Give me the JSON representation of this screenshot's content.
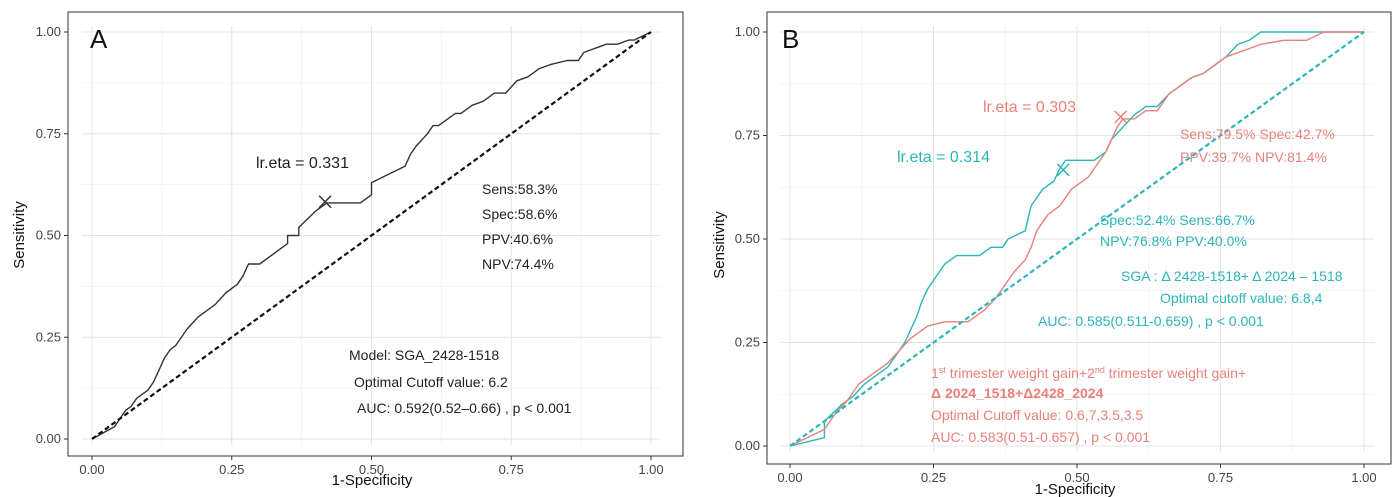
{
  "chart_data": [
    {
      "type": "line",
      "panel": "A",
      "xlabel": "1-Specificity",
      "ylabel": "Sensitivity",
      "xlim": [
        0,
        1
      ],
      "ylim": [
        0,
        1
      ],
      "x_ticks": [
        "0.00",
        "0.25",
        "0.50",
        "0.75",
        "1.00"
      ],
      "y_ticks": [
        "0.00",
        "0.25",
        "0.50",
        "0.75",
        "1.00"
      ],
      "grid": true,
      "series": [
        {
          "color": "#333333",
          "x": [
            0,
            0.04,
            0.05,
            0.06,
            0.07,
            0.08,
            0.09,
            0.1,
            0.11,
            0.12,
            0.13,
            0.14,
            0.15,
            0.17,
            0.19,
            0.2,
            0.22,
            0.24,
            0.26,
            0.27,
            0.28,
            0.3,
            0.32,
            0.35,
            0.35,
            0.37,
            0.37,
            0.4,
            0.42,
            0.44,
            0.48,
            0.5,
            0.5,
            0.53,
            0.56,
            0.57,
            0.58,
            0.6,
            0.61,
            0.62,
            0.65,
            0.66,
            0.68,
            0.7,
            0.72,
            0.74,
            0.76,
            0.78,
            0.79,
            0.8,
            0.82,
            0.85,
            0.87,
            0.88,
            0.9,
            0.92,
            0.94,
            0.96,
            0.97,
            1.0
          ],
          "y": [
            0,
            0.03,
            0.05,
            0.07,
            0.08,
            0.1,
            0.11,
            0.12,
            0.14,
            0.17,
            0.2,
            0.22,
            0.23,
            0.27,
            0.3,
            0.31,
            0.33,
            0.36,
            0.38,
            0.4,
            0.43,
            0.43,
            0.45,
            0.48,
            0.5,
            0.5,
            0.52,
            0.56,
            0.58,
            0.58,
            0.58,
            0.6,
            0.63,
            0.65,
            0.67,
            0.7,
            0.72,
            0.75,
            0.77,
            0.77,
            0.8,
            0.8,
            0.82,
            0.83,
            0.85,
            0.85,
            0.88,
            0.89,
            0.9,
            0.91,
            0.92,
            0.93,
            0.93,
            0.95,
            0.96,
            0.97,
            0.97,
            0.98,
            0.98,
            1.0
          ]
        },
        {
          "color": "#111111",
          "dashed": true,
          "x": [
            0,
            1
          ],
          "y": [
            0,
            1
          ]
        }
      ],
      "cutoff_marker": {
        "x": 0.417,
        "y": 0.583,
        "color": "#333333"
      },
      "annotations": {
        "panel_letter": "A",
        "cutoff_label": "lr.eta = 0.331",
        "sens": "Sens:58.3%",
        "spec": "Spec:58.6%",
        "ppv": "PPV:40.6%",
        "npv": "NPV:74.4%",
        "model": "Model: SGA_2428-1518",
        "optimal": "Optimal Cutoff value:  6.2",
        "auc": "AUC:  0.592(0.52–0.66)  , p < 0.001"
      }
    },
    {
      "type": "line",
      "panel": "B",
      "xlabel": "1-Specificity",
      "ylabel": "Sensitivity",
      "xlim": [
        0,
        1
      ],
      "ylim": [
        0,
        1
      ],
      "x_ticks": [
        "0.00",
        "0.25",
        "0.50",
        "0.75",
        "1.00"
      ],
      "y_ticks": [
        "0.00",
        "0.25",
        "0.50",
        "0.75",
        "1.00"
      ],
      "grid": true,
      "series": [
        {
          "color": "#2bb5b8",
          "x": [
            0,
            0.06,
            0.06,
            0.09,
            0.11,
            0.13,
            0.15,
            0.17,
            0.18,
            0.19,
            0.2,
            0.21,
            0.22,
            0.23,
            0.24,
            0.25,
            0.26,
            0.27,
            0.29,
            0.33,
            0.35,
            0.37,
            0.38,
            0.41,
            0.42,
            0.44,
            0.46,
            0.47,
            0.48,
            0.5,
            0.53,
            0.55,
            0.56,
            0.58,
            0.6,
            0.62,
            0.64,
            0.66,
            0.68,
            0.7,
            0.72,
            0.74,
            0.76,
            0.78,
            0.8,
            0.82,
            0.84,
            0.88,
            0.92,
            0.95,
            1.0
          ],
          "y": [
            0,
            0.02,
            0.06,
            0.1,
            0.12,
            0.15,
            0.17,
            0.19,
            0.21,
            0.23,
            0.25,
            0.28,
            0.31,
            0.35,
            0.38,
            0.4,
            0.42,
            0.44,
            0.46,
            0.46,
            0.48,
            0.48,
            0.5,
            0.52,
            0.58,
            0.62,
            0.64,
            0.67,
            0.69,
            0.69,
            0.69,
            0.71,
            0.74,
            0.77,
            0.8,
            0.82,
            0.82,
            0.85,
            0.87,
            0.89,
            0.9,
            0.92,
            0.94,
            0.97,
            0.98,
            1.0,
            1.0,
            1.0,
            1.0,
            1.0,
            1.0
          ]
        },
        {
          "color": "#e8807a",
          "x": [
            0,
            0.06,
            0.08,
            0.1,
            0.12,
            0.14,
            0.17,
            0.19,
            0.21,
            0.24,
            0.27,
            0.31,
            0.34,
            0.36,
            0.37,
            0.38,
            0.39,
            0.41,
            0.42,
            0.43,
            0.45,
            0.47,
            0.49,
            0.52,
            0.55,
            0.57,
            0.58,
            0.6,
            0.62,
            0.64,
            0.66,
            0.68,
            0.7,
            0.72,
            0.74,
            0.76,
            0.78,
            0.8,
            0.82,
            0.86,
            0.9,
            0.93,
            1.0
          ],
          "y": [
            0,
            0.04,
            0.08,
            0.11,
            0.15,
            0.17,
            0.2,
            0.23,
            0.26,
            0.29,
            0.3,
            0.3,
            0.33,
            0.36,
            0.38,
            0.4,
            0.42,
            0.45,
            0.48,
            0.52,
            0.56,
            0.58,
            0.62,
            0.65,
            0.71,
            0.77,
            0.79,
            0.79,
            0.81,
            0.81,
            0.85,
            0.87,
            0.89,
            0.9,
            0.92,
            0.94,
            0.95,
            0.96,
            0.97,
            0.98,
            0.98,
            1.0,
            1.0
          ]
        },
        {
          "color": "#2bb5b8",
          "dashed": true,
          "x": [
            0,
            1
          ],
          "y": [
            0,
            1
          ]
        }
      ],
      "cutoff_markers": [
        {
          "x": 0.576,
          "y": 0.795,
          "color": "#e8807a"
        },
        {
          "x": 0.476,
          "y": 0.667,
          "color": "#2bb5b8"
        }
      ],
      "annotations": {
        "panel_letter": "B",
        "red_cutoff_label": "lr.eta = 0.303",
        "red_sens_spec": "Sens:79.5%   Spec:42.7%",
        "red_ppv_npv": "PPV:39.7%  NPV:81.4%",
        "teal_cutoff_label": "lr.eta = 0.314",
        "teal_spec_sens": "Spec:52.4%  Sens:66.7%",
        "teal_npv_ppv": "NPV:76.8%   PPV:40.0%",
        "teal_model": "SGA : Δ 2428-1518+ Δ 2024 – 1518",
        "teal_optimal": "Optimal cutoff value:  6.8,4",
        "teal_auc": "AUC:  0.585(0.511-0.659)  , p < 0.001",
        "red_model_1_a": "1",
        "red_model_1_sup1": "st",
        "red_model_1_b": " trimester weight gain+2",
        "red_model_1_sup2": "nd",
        "red_model_1_c": " trimester weight gain+",
        "red_model_2": "Δ 2024_1518+Δ2428_2024",
        "red_optimal": "Optimal Cutoff value:  0.6,7,3.5,3.5",
        "red_auc": "AUC:  0.583(0.51-0.657)  , p < 0.001"
      }
    }
  ]
}
